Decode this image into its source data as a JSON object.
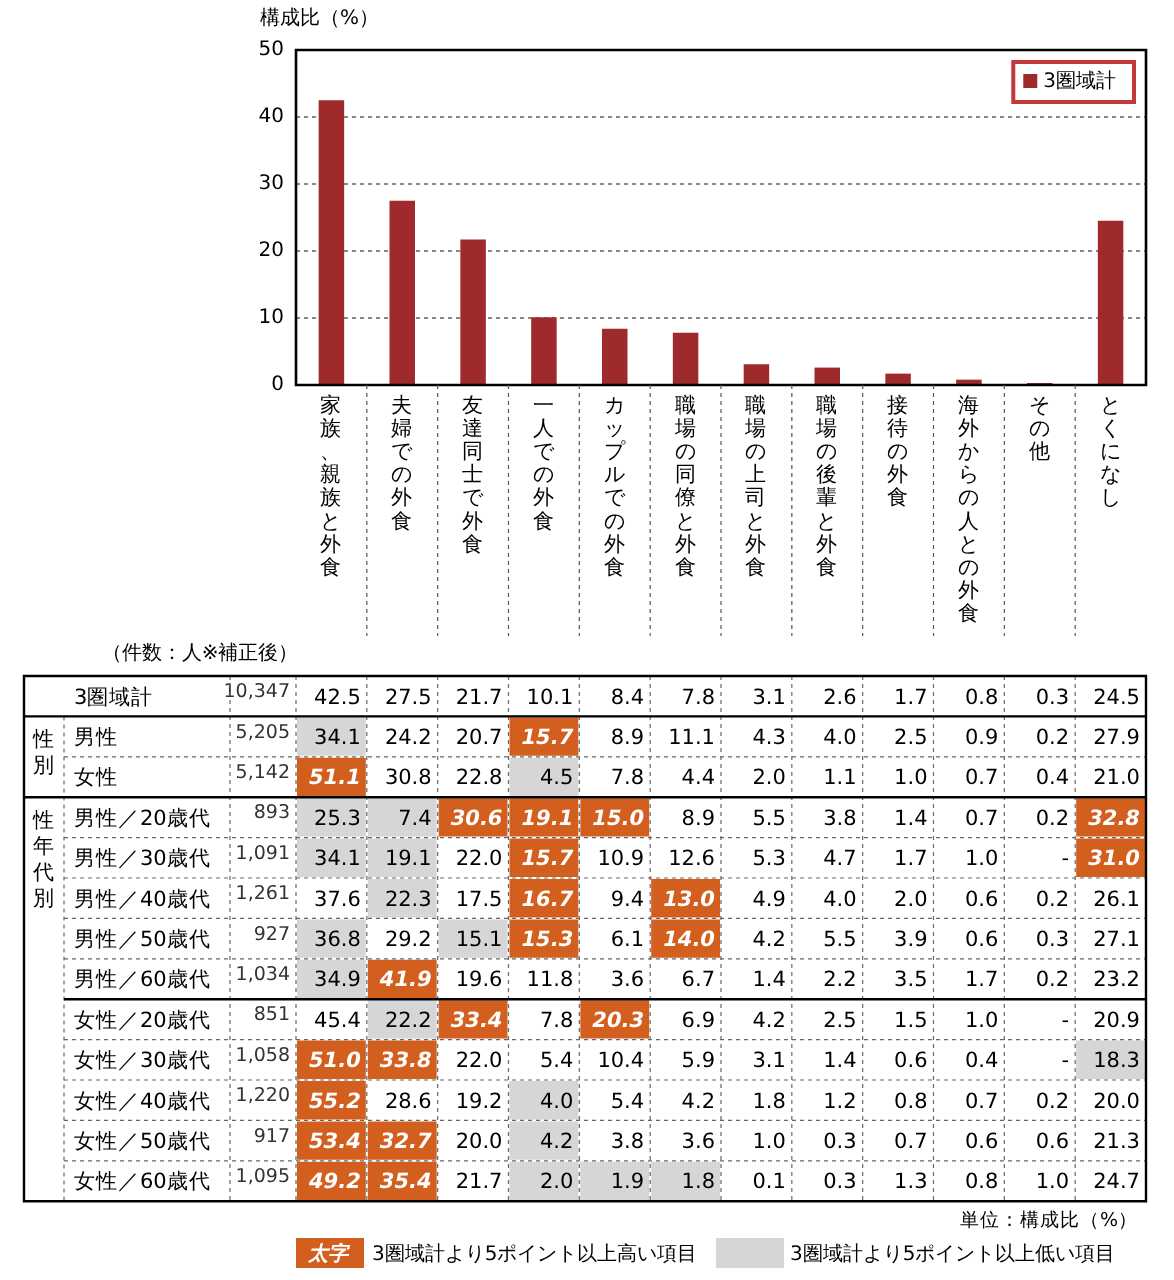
{
  "chart_data": [
    {
      "type": "bar",
      "ylabel": "構成比（%）",
      "categories": [
        "家族、親族と外食",
        "夫婦での外食",
        "友達同士で外食",
        "一人での外食",
        "カップルでの外食",
        "職場の同僚と外食",
        "職場の上司と外食",
        "職場の後輩と外食",
        "接待の外食",
        "海外からの人との外食",
        "その他",
        "とくになし"
      ],
      "series": [
        {
          "name": "3圏域計",
          "color": "#9e2a2b",
          "values": [
            42.5,
            27.5,
            21.7,
            10.1,
            8.4,
            7.8,
            3.1,
            2.6,
            1.7,
            0.8,
            0.3,
            24.5
          ]
        }
      ],
      "ylim": [
        0,
        50
      ],
      "yticks": [
        0,
        10,
        20,
        30,
        40,
        50
      ],
      "grid": "y",
      "legend": "top right"
    },
    {
      "type": "heatmap",
      "categories": [
        "家族、親族と外食",
        "夫婦での外食",
        "友達同士で外食",
        "一人での外食",
        "カップルでの外食",
        "職場の同僚と外食",
        "職場の上司と外食",
        "職場の後輩と外食",
        "接待の外食",
        "海外からの人との外食",
        "その他",
        "とくになし"
      ],
      "y_categories": [
        "3圏域計",
        "男性",
        "女性",
        "男性／20歳代",
        "男性／30歳代",
        "男性／40歳代",
        "男性／50歳代",
        "男性／60歳代",
        "女性／20歳代",
        "女性／30歳代",
        "女性／40歳代",
        "女性／50歳代",
        "女性／60歳代"
      ],
      "y2_categories": [
        "10,347",
        "5,205",
        "5,142",
        "893",
        "1,091",
        "1,261",
        "927",
        "1,034",
        "851",
        "1,058",
        "1,220",
        "917",
        "1,095"
      ],
      "cells": [
        [
          42.5,
          27.5,
          21.7,
          10.1,
          8.4,
          7.8,
          3.1,
          2.6,
          1.7,
          0.8,
          0.3,
          24.5
        ],
        [
          34.1,
          24.2,
          20.7,
          15.7,
          8.9,
          11.1,
          4.3,
          4.0,
          2.5,
          0.9,
          0.2,
          27.9
        ],
        [
          51.1,
          30.8,
          22.8,
          4.5,
          7.8,
          4.4,
          2.0,
          1.1,
          1.0,
          0.7,
          0.4,
          21.0
        ],
        [
          25.3,
          7.4,
          30.6,
          19.1,
          15.0,
          8.9,
          5.5,
          3.8,
          1.4,
          0.7,
          0.2,
          32.8
        ],
        [
          34.1,
          19.1,
          22.0,
          15.7,
          10.9,
          12.6,
          5.3,
          4.7,
          1.7,
          1.0,
          null,
          31.0
        ],
        [
          37.6,
          22.3,
          17.5,
          16.7,
          9.4,
          13.0,
          4.9,
          4.0,
          2.0,
          0.6,
          0.2,
          26.1
        ],
        [
          36.8,
          29.2,
          15.1,
          15.3,
          6.1,
          14.0,
          4.2,
          5.5,
          3.9,
          0.6,
          0.3,
          27.1
        ],
        [
          34.9,
          41.9,
          19.6,
          11.8,
          3.6,
          6.7,
          1.4,
          2.2,
          3.5,
          1.7,
          0.2,
          23.2
        ],
        [
          45.4,
          22.2,
          33.4,
          7.8,
          20.3,
          6.9,
          4.2,
          2.5,
          1.5,
          1.0,
          null,
          20.9
        ],
        [
          51.0,
          33.8,
          22.0,
          5.4,
          10.4,
          5.9,
          3.1,
          1.4,
          0.6,
          0.4,
          null,
          18.3
        ],
        [
          55.2,
          28.6,
          19.2,
          4.0,
          5.4,
          4.2,
          1.8,
          1.2,
          0.8,
          0.7,
          0.2,
          20.0
        ],
        [
          53.4,
          32.7,
          20.0,
          4.2,
          3.8,
          3.6,
          1.0,
          0.3,
          0.7,
          0.6,
          0.6,
          21.3
        ],
        [
          49.2,
          35.4,
          21.7,
          2.0,
          1.9,
          1.8,
          0.1,
          0.3,
          1.3,
          0.8,
          1.0,
          24.7
        ]
      ],
      "cell_labels": [
        [
          "42.5",
          "27.5",
          "21.7",
          "10.1",
          "8.4",
          "7.8",
          "3.1",
          "2.6",
          "1.7",
          "0.8",
          "0.3",
          "24.5"
        ],
        [
          "34.1",
          "24.2",
          "20.7",
          "15.7",
          "8.9",
          "11.1",
          "4.3",
          "4.0",
          "2.5",
          "0.9",
          "0.2",
          "27.9"
        ],
        [
          "51.1",
          "30.8",
          "22.8",
          "4.5",
          "7.8",
          "4.4",
          "2.0",
          "1.1",
          "1.0",
          "0.7",
          "0.4",
          "21.0"
        ],
        [
          "25.3",
          "7.4",
          "30.6",
          "19.1",
          "15.0",
          "8.9",
          "5.5",
          "3.8",
          "1.4",
          "0.7",
          "0.2",
          "32.8"
        ],
        [
          "34.1",
          "19.1",
          "22.0",
          "15.7",
          "10.9",
          "12.6",
          "5.3",
          "4.7",
          "1.7",
          "1.0",
          "-",
          "31.0"
        ],
        [
          "37.6",
          "22.3",
          "17.5",
          "16.7",
          "9.4",
          "13.0",
          "4.9",
          "4.0",
          "2.0",
          "0.6",
          "0.2",
          "26.1"
        ],
        [
          "36.8",
          "29.2",
          "15.1",
          "15.3",
          "6.1",
          "14.0",
          "4.2",
          "5.5",
          "3.9",
          "0.6",
          "0.3",
          "27.1"
        ],
        [
          "34.9",
          "41.9",
          "19.6",
          "11.8",
          "3.6",
          "6.7",
          "1.4",
          "2.2",
          "3.5",
          "1.7",
          "0.2",
          "23.2"
        ],
        [
          "45.4",
          "22.2",
          "33.4",
          "7.8",
          "20.3",
          "6.9",
          "4.2",
          "2.5",
          "1.5",
          "1.0",
          "-",
          "20.9"
        ],
        [
          "51.0",
          "33.8",
          "22.0",
          "5.4",
          "10.4",
          "5.9",
          "3.1",
          "1.4",
          "0.6",
          "0.4",
          "-",
          "18.3"
        ],
        [
          "55.2",
          "28.6",
          "19.2",
          "4.0",
          "5.4",
          "4.2",
          "1.8",
          "1.2",
          "0.8",
          "0.7",
          "0.2",
          "20.0"
        ],
        [
          "53.4",
          "32.7",
          "20.0",
          "4.2",
          "3.8",
          "3.6",
          "1.0",
          "0.3",
          "0.7",
          "0.6",
          "0.6",
          "21.3"
        ],
        [
          "49.2",
          "35.4",
          "21.7",
          "2.0",
          "1.9",
          "1.8",
          "0.1",
          "0.3",
          "1.3",
          "0.8",
          "1.0",
          "24.7"
        ]
      ],
      "tick_labels": "y",
      "annotations": [
        "（件数：人※補正後）",
        "性別",
        "性年代別",
        "単位：構成比（%）",
        "太字",
        "3圏域計より5ポイント以上高い項目",
        "3圏域計より5ポイント以上低い項目"
      ]
    }
  ]
}
